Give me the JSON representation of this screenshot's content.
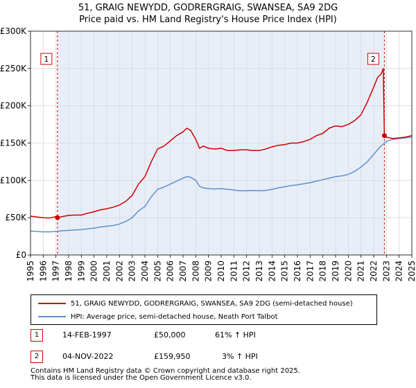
{
  "chart_data": {
    "type": "line",
    "title": "51, GRAIG NEWYDD, GODRERGRAIG, SWANSEA, SA9 2DG",
    "subtitle": "Price paid vs. HM Land Registry's House Price Index (HPI)",
    "xlim": [
      1995,
      2025
    ],
    "ylim": [
      0,
      300000
    ],
    "x_ticks": [
      "1995",
      "1996",
      "1997",
      "1998",
      "1999",
      "2000",
      "2001",
      "2002",
      "2003",
      "2004",
      "2005",
      "2006",
      "2007",
      "2008",
      "2009",
      "2010",
      "2011",
      "2012",
      "2013",
      "2014",
      "2015",
      "2016",
      "2017",
      "2018",
      "2019",
      "2020",
      "2021",
      "2022",
      "2023",
      "2024",
      "2025"
    ],
    "y_ticks": [
      {
        "value": 0,
        "label": "£0"
      },
      {
        "value": 50000,
        "label": "£50K"
      },
      {
        "value": 100000,
        "label": "£100K"
      },
      {
        "value": 150000,
        "label": "£150K"
      },
      {
        "value": 200000,
        "label": "£200K"
      },
      {
        "value": 250000,
        "label": "£250K"
      },
      {
        "value": 300000,
        "label": "£300K"
      }
    ],
    "grid": true,
    "shaded_region": [
      1997.12,
      2022.84
    ],
    "series": [
      {
        "name": "51, GRAIG NEWYDD, GODRERGRAIG, SWANSEA, SA9 2DG (semi-detached house)",
        "color": "#cc0000",
        "x": [
          1995,
          1995.5,
          1996,
          1996.5,
          1997,
          1997.12,
          1997.5,
          1998,
          1998.5,
          1999,
          1999.5,
          2000,
          2000.5,
          2001,
          2001.5,
          2002,
          2002.5,
          2003,
          2003.5,
          2004,
          2004.5,
          2005,
          2005.5,
          2006,
          2006.5,
          2007,
          2007.3,
          2007.6,
          2008,
          2008.3,
          2008.6,
          2009,
          2009.5,
          2010,
          2010.5,
          2011,
          2011.5,
          2012,
          2012.5,
          2013,
          2013.5,
          2014,
          2014.5,
          2015,
          2015.5,
          2016,
          2016.5,
          2017,
          2017.5,
          2018,
          2018.5,
          2019,
          2019.5,
          2020,
          2020.5,
          2021,
          2021.5,
          2022,
          2022.3,
          2022.6,
          2022.75,
          2022.84,
          2023,
          2023.5,
          2024,
          2024.5,
          2025
        ],
        "y": [
          52000,
          51000,
          50000,
          49500,
          51500,
          50000,
          51500,
          53000,
          53500,
          53500,
          56000,
          58000,
          60500,
          62000,
          64000,
          67000,
          72000,
          80000,
          95000,
          105000,
          125000,
          142000,
          146000,
          153000,
          160000,
          165000,
          170000,
          167000,
          155000,
          143000,
          146000,
          143000,
          142000,
          143000,
          140000,
          140000,
          141000,
          141000,
          140000,
          140000,
          142000,
          145000,
          147000,
          148000,
          150000,
          150000,
          152000,
          155000,
          160000,
          163000,
          170000,
          173000,
          172000,
          175000,
          180000,
          188000,
          205000,
          225000,
          238000,
          243000,
          250000,
          159950,
          158000,
          156000,
          157000,
          158000,
          160000
        ]
      },
      {
        "name": "HPI: Average price, semi-detached house, Neath Port Talbot",
        "color": "#5b8fcf",
        "x": [
          1995,
          1995.5,
          1996,
          1996.5,
          1997,
          1997.5,
          1998,
          1998.5,
          1999,
          1999.5,
          2000,
          2000.5,
          2001,
          2001.5,
          2002,
          2002.5,
          2003,
          2003.5,
          2004,
          2004.5,
          2005,
          2005.5,
          2006,
          2006.5,
          2007,
          2007.3,
          2007.6,
          2008,
          2008.3,
          2008.6,
          2009,
          2009.5,
          2010,
          2010.5,
          2011,
          2011.5,
          2012,
          2012.5,
          2013,
          2013.5,
          2014,
          2014.5,
          2015,
          2015.5,
          2016,
          2016.5,
          2017,
          2017.5,
          2018,
          2018.5,
          2019,
          2019.5,
          2020,
          2020.5,
          2021,
          2021.5,
          2022,
          2022.5,
          2023,
          2023.5,
          2024,
          2024.5,
          2025
        ],
        "y": [
          32000,
          31500,
          31000,
          31000,
          31500,
          32500,
          33000,
          33500,
          34000,
          35000,
          36000,
          37500,
          38500,
          39500,
          41500,
          45000,
          50000,
          59000,
          65000,
          78000,
          88000,
          91000,
          95000,
          99000,
          103000,
          105000,
          104000,
          100000,
          92000,
          90000,
          89000,
          88500,
          89000,
          88000,
          87000,
          86000,
          86000,
          86500,
          86000,
          86500,
          88000,
          90000,
          91500,
          93000,
          94000,
          95500,
          97000,
          99000,
          101000,
          103000,
          105000,
          106000,
          108000,
          112000,
          118000,
          125000,
          135000,
          145000,
          152000,
          155000,
          156000,
          157000,
          158000
        ]
      }
    ],
    "sales": [
      {
        "label": "1",
        "x": 1997.12,
        "y": 50000,
        "date": "14-FEB-1997",
        "price": "£50,000",
        "hpi": "61% ↑ HPI"
      },
      {
        "label": "2",
        "x": 2022.84,
        "y": 159950,
        "date": "04-NOV-2022",
        "price": "£159,950",
        "hpi": "3% ↑ HPI"
      }
    ]
  },
  "legend": {
    "property_label": "51, GRAIG NEWYDD, GODRERGRAIG, SWANSEA, SA9 2DG (semi-detached house)",
    "hpi_label": "HPI: Average price, semi-detached house, Neath Port Talbot"
  },
  "footer": {
    "line1": "Contains HM Land Registry data © Crown copyright and database right 2025.",
    "line2": "This data is licensed under the Open Government Licence v3.0."
  }
}
